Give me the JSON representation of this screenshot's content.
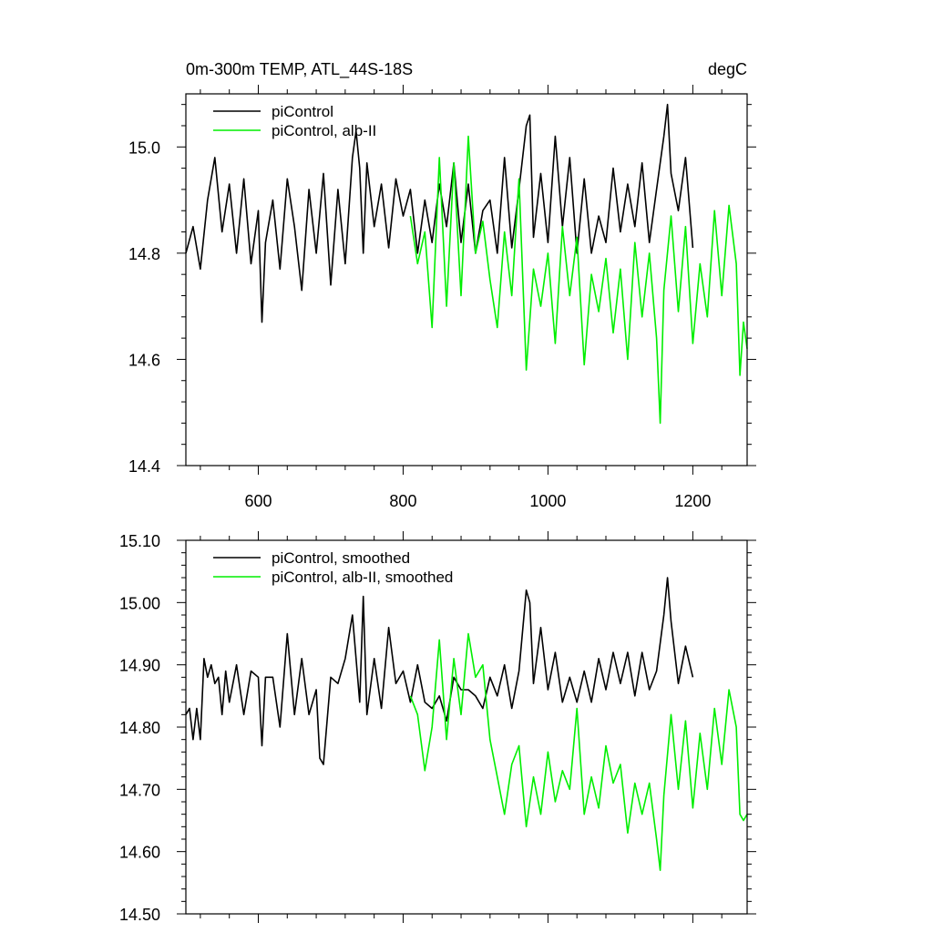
{
  "chart_data": [
    {
      "type": "line",
      "title": "0m-300m TEMP, ATL_44S-18S",
      "units": "degC",
      "xlim": [
        500,
        1275
      ],
      "ylim": [
        14.4,
        15.1
      ],
      "xticks": [
        600,
        800,
        1000,
        1200
      ],
      "xtick_labels": [
        "600",
        "800",
        "1000",
        "1200"
      ],
      "yticks": [
        14.4,
        14.6,
        14.8,
        15.0
      ],
      "ytick_labels": [
        "14.4",
        "14.6",
        "14.8",
        "15.0"
      ],
      "legend_position": "top-left",
      "series": [
        {
          "name": "piControl",
          "color": "#000000",
          "x": [
            500,
            510,
            520,
            530,
            540,
            550,
            560,
            570,
            580,
            590,
            600,
            605,
            610,
            620,
            630,
            640,
            650,
            660,
            670,
            680,
            690,
            700,
            710,
            720,
            730,
            735,
            740,
            745,
            750,
            760,
            770,
            780,
            790,
            800,
            810,
            820,
            830,
            840,
            850,
            860,
            870,
            880,
            890,
            900,
            910,
            920,
            930,
            940,
            950,
            960,
            970,
            975,
            980,
            990,
            1000,
            1010,
            1020,
            1030,
            1040,
            1050,
            1060,
            1070,
            1080,
            1090,
            1100,
            1110,
            1120,
            1130,
            1140,
            1150,
            1160,
            1165,
            1170,
            1180,
            1190,
            1200
          ],
          "values": [
            14.8,
            14.85,
            14.77,
            14.9,
            14.98,
            14.84,
            14.93,
            14.8,
            14.94,
            14.78,
            14.88,
            14.67,
            14.82,
            14.9,
            14.77,
            14.94,
            14.85,
            14.73,
            14.92,
            14.8,
            14.95,
            14.74,
            14.92,
            14.78,
            14.98,
            15.03,
            14.96,
            14.8,
            14.97,
            14.85,
            14.93,
            14.81,
            14.94,
            14.87,
            14.92,
            14.8,
            14.9,
            14.82,
            14.93,
            14.85,
            14.97,
            14.82,
            14.93,
            14.8,
            14.88,
            14.9,
            14.8,
            14.98,
            14.81,
            14.92,
            15.04,
            15.06,
            14.83,
            14.95,
            14.82,
            15.02,
            14.85,
            14.98,
            14.8,
            14.94,
            14.8,
            14.87,
            14.82,
            14.96,
            14.84,
            14.93,
            14.85,
            14.97,
            14.82,
            14.92,
            15.02,
            15.08,
            14.95,
            14.88,
            14.98,
            14.81
          ]
        },
        {
          "name": "piControl, alb-II",
          "color": "#00ee00",
          "x": [
            810,
            820,
            830,
            840,
            850,
            860,
            870,
            880,
            890,
            900,
            910,
            920,
            930,
            940,
            950,
            960,
            970,
            980,
            990,
            1000,
            1010,
            1020,
            1030,
            1040,
            1050,
            1060,
            1070,
            1080,
            1090,
            1100,
            1110,
            1120,
            1130,
            1140,
            1150,
            1155,
            1160,
            1170,
            1180,
            1190,
            1200,
            1210,
            1220,
            1230,
            1240,
            1250,
            1260,
            1265,
            1270,
            1275
          ],
          "values": [
            14.87,
            14.78,
            14.84,
            14.66,
            14.98,
            14.7,
            14.97,
            14.72,
            15.02,
            14.8,
            14.86,
            14.75,
            14.66,
            14.84,
            14.72,
            14.94,
            14.58,
            14.77,
            14.7,
            14.8,
            14.63,
            14.85,
            14.72,
            14.83,
            14.59,
            14.76,
            14.69,
            14.79,
            14.65,
            14.77,
            14.6,
            14.82,
            14.68,
            14.8,
            14.64,
            14.48,
            14.73,
            14.87,
            14.69,
            14.85,
            14.63,
            14.78,
            14.68,
            14.88,
            14.72,
            14.89,
            14.78,
            14.57,
            14.67,
            14.62
          ]
        }
      ]
    },
    {
      "type": "line",
      "title": "",
      "xlim": [
        500,
        1275
      ],
      "ylim": [
        14.5,
        15.1
      ],
      "xticks": [
        600,
        800,
        1000,
        1200
      ],
      "yticks": [
        14.5,
        14.6,
        14.7,
        14.8,
        14.9,
        15.0,
        15.1
      ],
      "ytick_labels": [
        "14.50",
        "14.60",
        "14.70",
        "14.80",
        "14.90",
        "15.00",
        "15.10"
      ],
      "legend_position": "top-left",
      "series": [
        {
          "name": "piControl, smoothed",
          "color": "#000000",
          "x": [
            500,
            505,
            510,
            515,
            520,
            525,
            530,
            535,
            540,
            545,
            550,
            555,
            560,
            570,
            580,
            590,
            600,
            605,
            610,
            620,
            630,
            640,
            650,
            660,
            670,
            680,
            685,
            690,
            700,
            710,
            720,
            730,
            740,
            745,
            750,
            760,
            770,
            780,
            790,
            800,
            810,
            820,
            830,
            840,
            850,
            860,
            870,
            880,
            890,
            900,
            910,
            920,
            930,
            940,
            950,
            960,
            970,
            975,
            980,
            990,
            1000,
            1010,
            1020,
            1030,
            1040,
            1050,
            1060,
            1070,
            1080,
            1090,
            1100,
            1110,
            1120,
            1130,
            1140,
            1150,
            1160,
            1165,
            1170,
            1180,
            1190,
            1200
          ],
          "values": [
            14.82,
            14.83,
            14.78,
            14.83,
            14.78,
            14.91,
            14.88,
            14.9,
            14.87,
            14.88,
            14.82,
            14.89,
            14.84,
            14.9,
            14.82,
            14.89,
            14.88,
            14.77,
            14.88,
            14.88,
            14.8,
            14.95,
            14.82,
            14.91,
            14.82,
            14.86,
            14.75,
            14.74,
            14.88,
            14.87,
            14.91,
            14.98,
            14.84,
            15.01,
            14.82,
            14.91,
            14.83,
            14.96,
            14.87,
            14.89,
            14.84,
            14.9,
            14.84,
            14.83,
            14.85,
            14.81,
            14.88,
            14.86,
            14.86,
            14.85,
            14.83,
            14.88,
            14.85,
            14.9,
            14.83,
            14.89,
            15.02,
            15.0,
            14.87,
            14.96,
            14.86,
            14.92,
            14.84,
            14.88,
            14.84,
            14.89,
            14.84,
            14.91,
            14.86,
            14.92,
            14.87,
            14.92,
            14.85,
            14.92,
            14.86,
            14.89,
            14.98,
            15.04,
            14.97,
            14.87,
            14.93,
            14.88
          ]
        },
        {
          "name": "piControl, alb-II, smoothed",
          "color": "#00ee00",
          "x": [
            810,
            820,
            830,
            840,
            850,
            860,
            870,
            880,
            890,
            900,
            910,
            920,
            930,
            940,
            950,
            960,
            970,
            980,
            990,
            1000,
            1010,
            1020,
            1030,
            1040,
            1050,
            1060,
            1070,
            1080,
            1090,
            1100,
            1110,
            1120,
            1130,
            1140,
            1150,
            1155,
            1160,
            1170,
            1180,
            1190,
            1200,
            1210,
            1220,
            1230,
            1240,
            1250,
            1260,
            1265,
            1270,
            1275
          ],
          "values": [
            14.85,
            14.82,
            14.73,
            14.8,
            14.94,
            14.78,
            14.91,
            14.82,
            14.95,
            14.88,
            14.9,
            14.78,
            14.72,
            14.66,
            14.74,
            14.77,
            14.64,
            14.72,
            14.66,
            14.76,
            14.68,
            14.73,
            14.7,
            14.83,
            14.66,
            14.72,
            14.67,
            14.77,
            14.71,
            14.74,
            14.63,
            14.71,
            14.66,
            14.71,
            14.62,
            14.57,
            14.69,
            14.82,
            14.7,
            14.81,
            14.67,
            14.79,
            14.7,
            14.83,
            14.74,
            14.86,
            14.8,
            14.66,
            14.65,
            14.66
          ]
        }
      ]
    }
  ]
}
